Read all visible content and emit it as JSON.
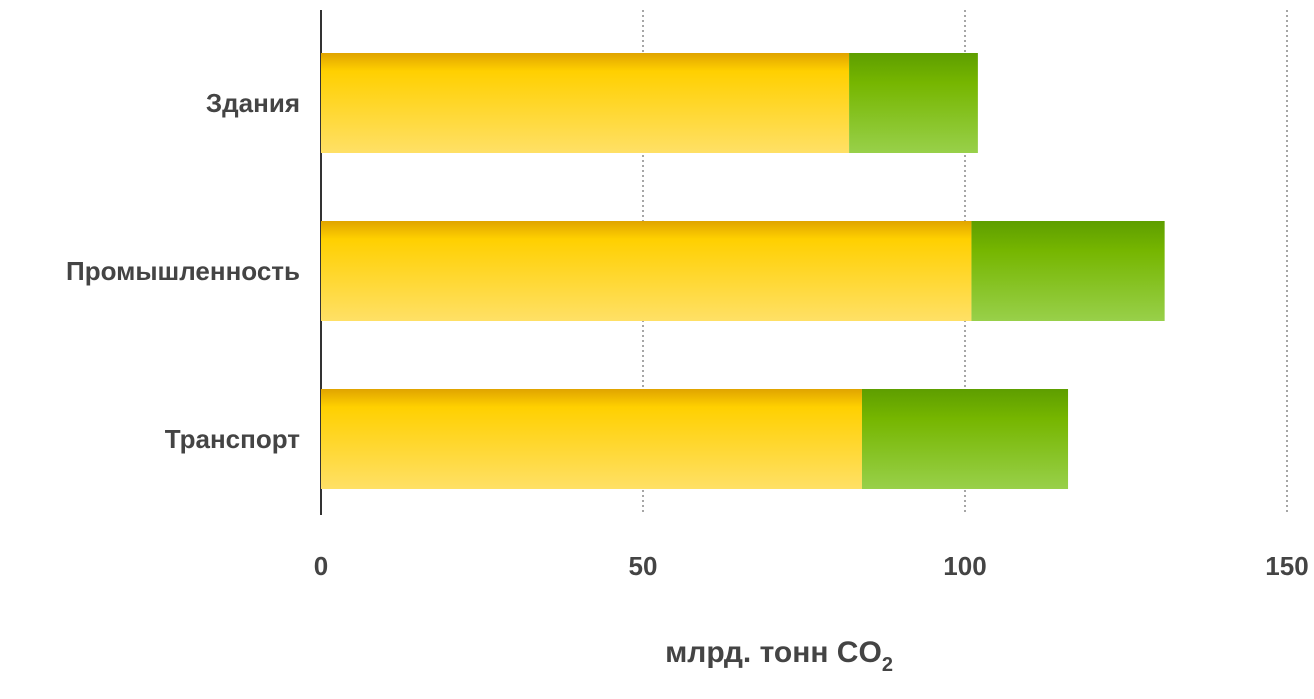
{
  "chart_data": {
    "type": "bar",
    "orientation": "horizontal",
    "stacked": true,
    "categories": [
      "Здания",
      "Промышленность",
      "Транспорт"
    ],
    "series": [
      {
        "values": [
          82,
          101,
          84
        ],
        "color": "#FFD21A"
      },
      {
        "values": [
          20,
          30,
          32
        ],
        "color": "#78BC1E"
      }
    ],
    "xticks": [
      "0",
      "50",
      "100",
      "150"
    ],
    "xlim": [
      0,
      150
    ],
    "xlabel_main": "млрд. тонн CO",
    "xlabel_sub": "2",
    "grid": "vertical dotted",
    "legend": "none"
  }
}
